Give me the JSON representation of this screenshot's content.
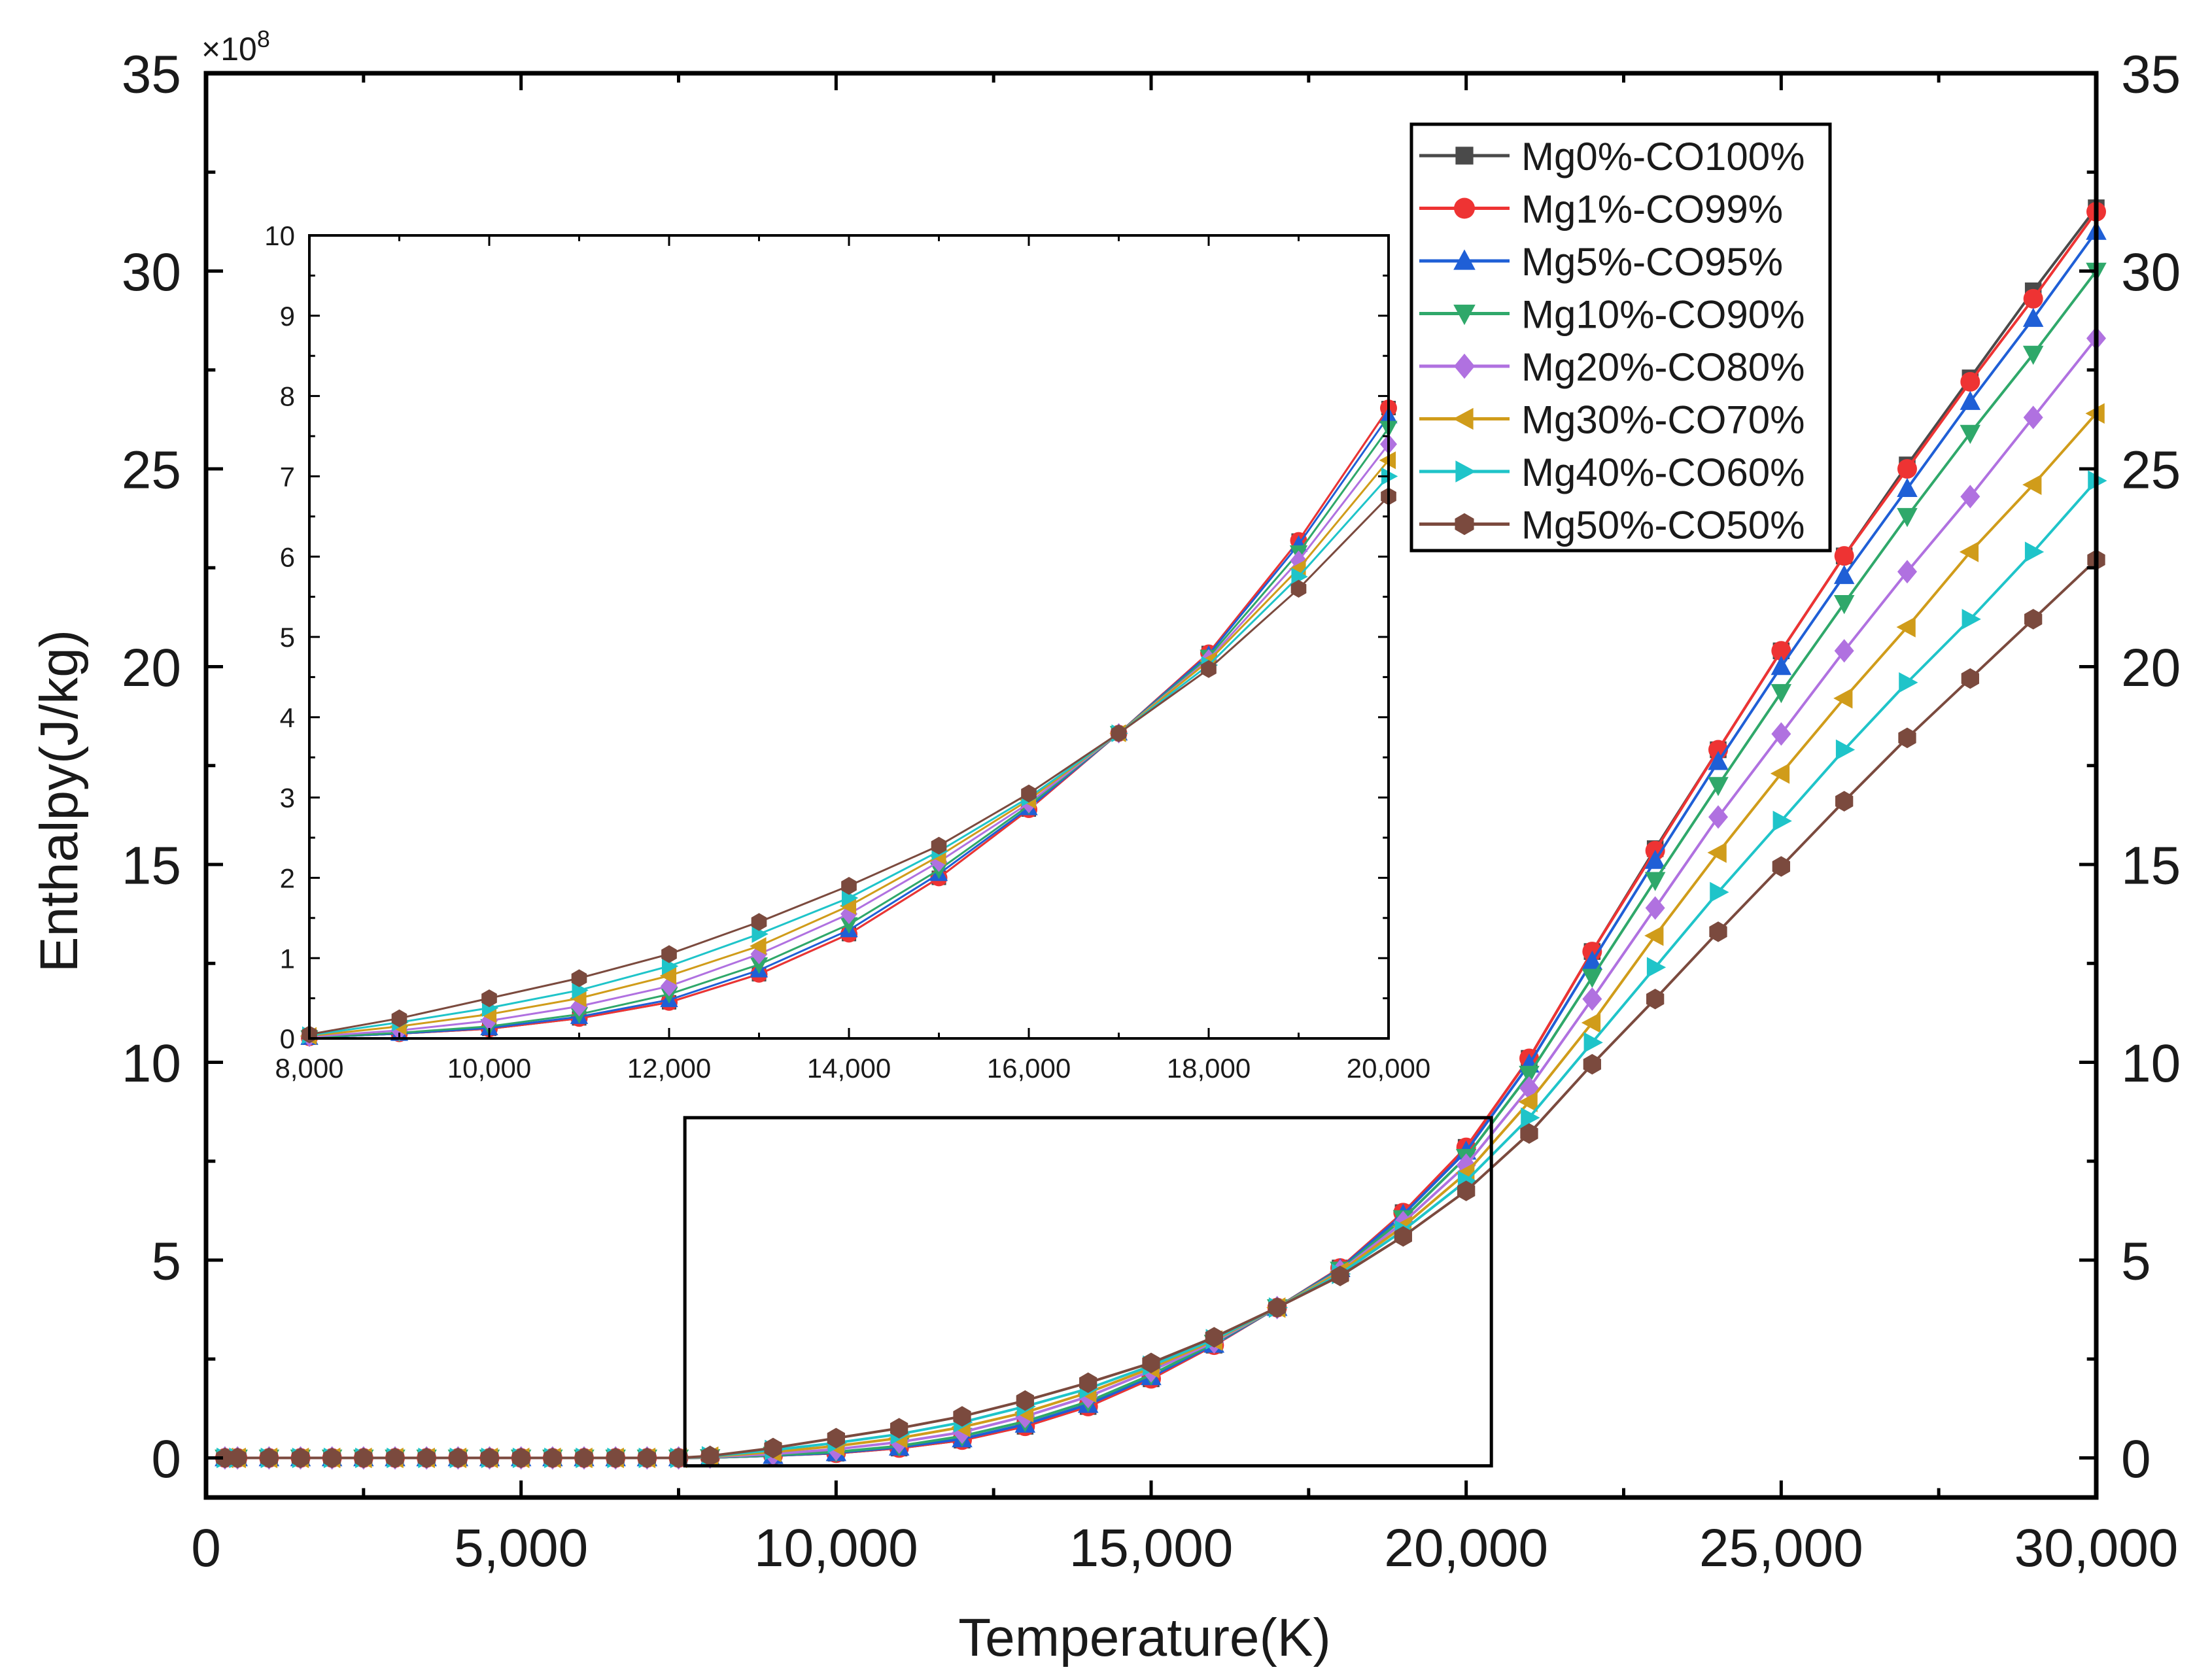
{
  "chart_data": [
    {
      "type": "line",
      "title": "",
      "xlabel": "Temperature(K)",
      "ylabel": "Enthalpy(J/kg)",
      "y_multiplier": "×10",
      "y_multiplier_exp": "8",
      "xlim": [
        0,
        30000
      ],
      "ylim": [
        -1,
        35
      ],
      "x_ticks": [
        0,
        5000,
        10000,
        15000,
        20000,
        25000,
        30000
      ],
      "x_tick_labels": [
        "0",
        "5,000",
        "10,000",
        "15,000",
        "20,000",
        "25,000",
        "30,000"
      ],
      "y_ticks": [
        0,
        5,
        10,
        15,
        20,
        25,
        30,
        35
      ],
      "y_tick_labels": [
        "0",
        "5",
        "10",
        "15",
        "20",
        "25",
        "30",
        "35"
      ],
      "right_y_tick_labels": [
        "0",
        "5",
        "10",
        "15",
        "20",
        "25",
        "30",
        "35"
      ],
      "grid": false,
      "legend_position": "top-right",
      "zoom_box": {
        "x_range": [
          7600,
          20400
        ],
        "y_range": [
          -0.2,
          8.6
        ]
      },
      "x": [
        300,
        500,
        1000,
        1500,
        2000,
        2500,
        3000,
        3500,
        4000,
        4500,
        5000,
        5500,
        6000,
        6500,
        7000,
        7500,
        8000,
        9000,
        10000,
        11000,
        12000,
        13000,
        14000,
        15000,
        16000,
        17000,
        18000,
        19000,
        20000,
        21000,
        22000,
        23000,
        24000,
        25000,
        26000,
        27000,
        28000,
        29000,
        30000
      ],
      "series": [
        {
          "name": "Mg0%-CO100%",
          "color": "#4a4a4a",
          "marker": "square",
          "values": [
            0,
            0,
            0,
            0,
            0,
            0,
            0,
            0,
            0,
            0,
            0,
            0,
            0,
            0,
            0,
            0,
            0.01,
            0.06,
            0.12,
            0.25,
            0.45,
            0.8,
            1.3,
            2.0,
            2.85,
            3.8,
            4.8,
            6.2,
            7.85,
            10.1,
            12.8,
            15.4,
            17.9,
            20.4,
            22.8,
            25.1,
            27.3,
            29.5,
            31.6
          ]
        },
        {
          "name": "Mg1%-CO99%",
          "color": "#ee3333",
          "marker": "circle",
          "values": [
            0,
            0,
            0,
            0,
            0,
            0,
            0,
            0,
            0,
            0,
            0,
            0,
            0,
            0,
            0,
            0,
            0.01,
            0.06,
            0.12,
            0.25,
            0.45,
            0.8,
            1.3,
            2.0,
            2.85,
            3.8,
            4.8,
            6.2,
            7.85,
            10.1,
            12.8,
            15.35,
            17.9,
            20.4,
            22.8,
            25.0,
            27.2,
            29.3,
            31.5
          ]
        },
        {
          "name": "Mg5%-CO95%",
          "color": "#1f5fd6",
          "marker": "triangle-up",
          "values": [
            0,
            0,
            0,
            0,
            0,
            0,
            0,
            0,
            0,
            0,
            0,
            0,
            0,
            0,
            0,
            0,
            0.01,
            0.06,
            0.13,
            0.27,
            0.48,
            0.85,
            1.35,
            2.05,
            2.87,
            3.8,
            4.78,
            6.15,
            7.75,
            9.95,
            12.55,
            15.1,
            17.6,
            20.0,
            22.3,
            24.5,
            26.7,
            28.8,
            31.0
          ]
        },
        {
          "name": "Mg10%-CO90%",
          "color": "#2fa86a",
          "marker": "triangle-down",
          "values": [
            0,
            0,
            0,
            0,
            0,
            0,
            0,
            0,
            0,
            0,
            0,
            0,
            0,
            0,
            0,
            0,
            0.01,
            0.07,
            0.15,
            0.3,
            0.55,
            0.92,
            1.42,
            2.1,
            2.9,
            3.8,
            4.75,
            6.05,
            7.6,
            9.7,
            12.15,
            14.6,
            17.0,
            19.35,
            21.6,
            23.8,
            25.9,
            27.9,
            30.0
          ]
        },
        {
          "name": "Mg20%-CO80%",
          "color": "#b071e0",
          "marker": "diamond",
          "values": [
            0,
            0,
            0,
            0,
            0,
            0,
            0,
            0,
            0,
            0,
            0,
            0,
            0,
            0,
            0,
            0,
            0.02,
            0.1,
            0.22,
            0.4,
            0.65,
            1.05,
            1.55,
            2.2,
            2.93,
            3.8,
            4.72,
            5.95,
            7.4,
            9.35,
            11.6,
            13.9,
            16.2,
            18.3,
            20.4,
            22.4,
            24.3,
            26.3,
            28.3
          ]
        },
        {
          "name": "Mg30%-CO70%",
          "color": "#d09c1a",
          "marker": "triangle-left",
          "values": [
            0,
            0,
            0,
            0,
            0,
            0,
            0,
            0,
            0,
            0,
            0,
            0,
            0,
            0,
            0,
            0,
            0.03,
            0.15,
            0.3,
            0.5,
            0.78,
            1.15,
            1.65,
            2.27,
            2.97,
            3.8,
            4.7,
            5.85,
            7.2,
            9.0,
            11.0,
            13.2,
            15.3,
            17.3,
            19.2,
            21.0,
            22.9,
            24.6,
            26.4
          ]
        },
        {
          "name": "Mg40%-CO60%",
          "color": "#1fc4c9",
          "marker": "triangle-right",
          "values": [
            0,
            0,
            0,
            0,
            0,
            0,
            0,
            0,
            0,
            0,
            0,
            0,
            0,
            0,
            0,
            0,
            0.04,
            0.2,
            0.38,
            0.6,
            0.9,
            1.3,
            1.75,
            2.33,
            3.0,
            3.8,
            4.65,
            5.75,
            7.0,
            8.6,
            10.5,
            12.4,
            14.3,
            16.1,
            17.9,
            19.6,
            21.2,
            22.9,
            24.7
          ]
        },
        {
          "name": "Mg50%-CO50%",
          "color": "#7b4a3e",
          "marker": "hexagon",
          "values": [
            0,
            0,
            0,
            0,
            0,
            0,
            0,
            0,
            0,
            0,
            0,
            0,
            0,
            0,
            0,
            0,
            0.05,
            0.25,
            0.5,
            0.75,
            1.05,
            1.45,
            1.9,
            2.4,
            3.05,
            3.8,
            4.6,
            5.6,
            6.75,
            8.2,
            9.95,
            11.6,
            13.3,
            14.95,
            16.6,
            18.2,
            19.7,
            21.2,
            22.7
          ]
        }
      ]
    },
    {
      "type": "line",
      "title": "",
      "xlabel": "",
      "ylabel": "",
      "xlim": [
        8000,
        20000
      ],
      "ylim": [
        0,
        10
      ],
      "x_ticks": [
        8000,
        10000,
        12000,
        14000,
        16000,
        18000,
        20000
      ],
      "x_tick_labels": [
        "8,000",
        "10,000",
        "12,000",
        "14,000",
        "16,000",
        "18,000",
        "20,000"
      ],
      "y_ticks": [
        0,
        1,
        2,
        3,
        4,
        5,
        6,
        7,
        8,
        9,
        10
      ],
      "y_tick_labels": [
        "0",
        "1",
        "2",
        "3",
        "4",
        "5",
        "6",
        "7",
        "8",
        "9",
        "10"
      ],
      "grid": false,
      "x": [
        8000,
        9000,
        10000,
        11000,
        12000,
        13000,
        14000,
        15000,
        16000,
        17000,
        18000,
        19000,
        20000
      ],
      "series": [
        {
          "name": "Mg0%-CO100%",
          "color": "#4a4a4a",
          "marker": "square",
          "values": [
            0.01,
            0.06,
            0.12,
            0.25,
            0.45,
            0.8,
            1.3,
            2.0,
            2.85,
            3.8,
            4.8,
            6.2,
            7.85
          ]
        },
        {
          "name": "Mg1%-CO99%",
          "color": "#ee3333",
          "marker": "circle",
          "values": [
            0.01,
            0.06,
            0.12,
            0.25,
            0.45,
            0.8,
            1.3,
            2.0,
            2.85,
            3.8,
            4.8,
            6.2,
            7.85
          ]
        },
        {
          "name": "Mg5%-CO95%",
          "color": "#1f5fd6",
          "marker": "triangle-up",
          "values": [
            0.01,
            0.06,
            0.13,
            0.27,
            0.48,
            0.85,
            1.35,
            2.05,
            2.87,
            3.8,
            4.78,
            6.15,
            7.75
          ]
        },
        {
          "name": "Mg10%-CO90%",
          "color": "#2fa86a",
          "marker": "triangle-down",
          "values": [
            0.01,
            0.07,
            0.15,
            0.3,
            0.55,
            0.92,
            1.42,
            2.1,
            2.9,
            3.8,
            4.75,
            6.05,
            7.6
          ]
        },
        {
          "name": "Mg20%-CO80%",
          "color": "#b071e0",
          "marker": "diamond",
          "values": [
            0.02,
            0.1,
            0.22,
            0.4,
            0.65,
            1.05,
            1.55,
            2.2,
            2.93,
            3.8,
            4.72,
            5.95,
            7.4
          ]
        },
        {
          "name": "Mg30%-CO70%",
          "color": "#d09c1a",
          "marker": "triangle-left",
          "values": [
            0.03,
            0.15,
            0.3,
            0.5,
            0.78,
            1.15,
            1.65,
            2.27,
            2.97,
            3.8,
            4.7,
            5.85,
            7.2
          ]
        },
        {
          "name": "Mg40%-CO60%",
          "color": "#1fc4c9",
          "marker": "triangle-right",
          "values": [
            0.04,
            0.2,
            0.38,
            0.6,
            0.9,
            1.3,
            1.75,
            2.33,
            3.0,
            3.8,
            4.65,
            5.75,
            7.0
          ]
        },
        {
          "name": "Mg50%-CO50%",
          "color": "#7b4a3e",
          "marker": "hexagon",
          "values": [
            0.05,
            0.25,
            0.5,
            0.75,
            1.05,
            1.45,
            1.9,
            2.4,
            3.05,
            3.8,
            4.6,
            5.6,
            6.75
          ]
        }
      ]
    }
  ]
}
